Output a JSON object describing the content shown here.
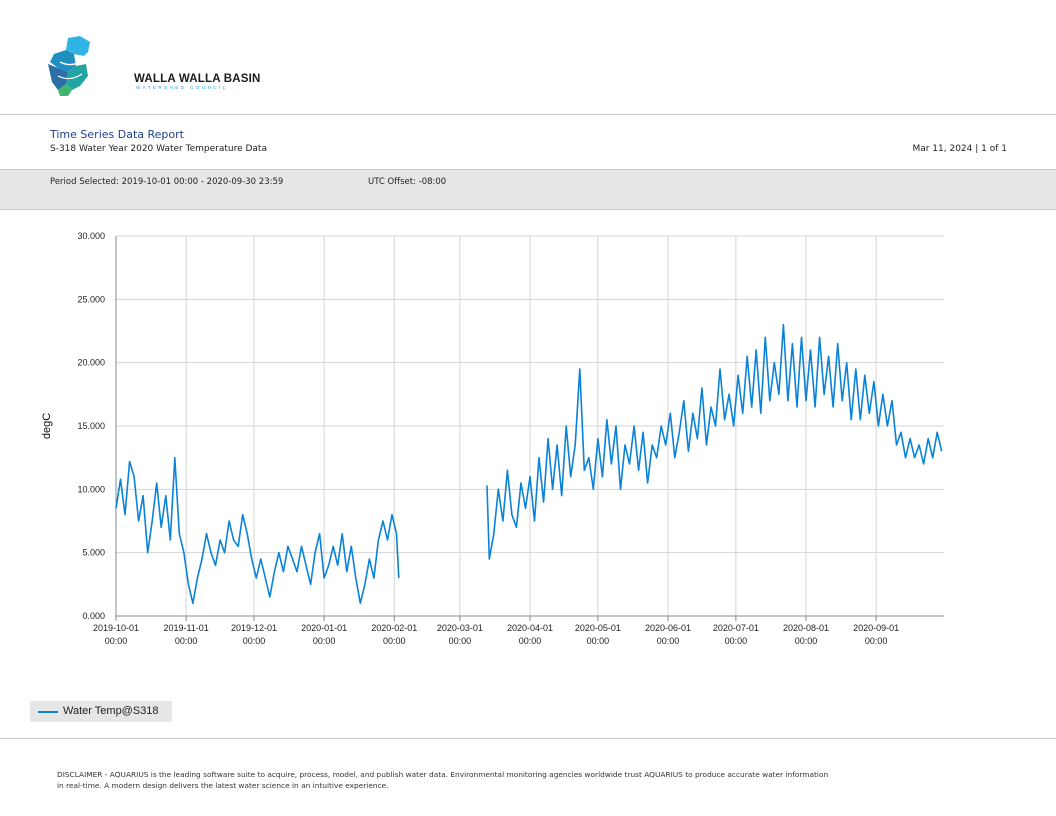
{
  "header": {
    "logo": {
      "name": "WALLA WALLA BASIN",
      "subtitle": "WATERSHED COUNCIL"
    },
    "report_title": "Time Series Data Report",
    "report_subtitle": "S-318 Water Year 2020 Water Temperature Data",
    "date_page": "Mar 11, 2024 | 1 of 1"
  },
  "period": {
    "selected": "Period Selected: 2019-10-01 00:00 - 2020-09-30 23:59",
    "utc": "UTC Offset: -08:00"
  },
  "chart_data": {
    "type": "line",
    "ylabel": "degC",
    "xlabel": "",
    "ylim": [
      0,
      30
    ],
    "xlim": [
      "2019-10-01",
      "2020-09-30"
    ],
    "y_ticks": [
      "0.000",
      "5.000",
      "10.000",
      "15.000",
      "20.000",
      "25.000",
      "30.000"
    ],
    "x_ticks": [
      {
        "date": "2019-10-01",
        "label": "2019-10-01",
        "time": "00:00"
      },
      {
        "date": "2019-11-01",
        "label": "2019-11-01",
        "time": "00:00"
      },
      {
        "date": "2019-12-01",
        "label": "2019-12-01",
        "time": "00:00"
      },
      {
        "date": "2020-01-01",
        "label": "2020-01-01",
        "time": "00:00"
      },
      {
        "date": "2020-02-01",
        "label": "2020-02-01",
        "time": "00:00"
      },
      {
        "date": "2020-03-01",
        "label": "2020-03-01",
        "time": "00:00"
      },
      {
        "date": "2020-04-01",
        "label": "2020-04-01",
        "time": "00:00"
      },
      {
        "date": "2020-05-01",
        "label": "2020-05-01",
        "time": "00:00"
      },
      {
        "date": "2020-06-01",
        "label": "2020-06-01",
        "time": "00:00"
      },
      {
        "date": "2020-07-01",
        "label": "2020-07-01",
        "time": "00:00"
      },
      {
        "date": "2020-08-01",
        "label": "2020-08-01",
        "time": "00:00"
      },
      {
        "date": "2020-09-01",
        "label": "2020-09-01",
        "time": "00:00"
      }
    ],
    "grid": true,
    "legend_position": "bottom-left",
    "series": [
      {
        "name": "Water Temp@S318",
        "color": "#0a82d8",
        "segments": [
          [
            [
              "2019-10-01",
              8.5
            ],
            [
              "2019-10-03",
              10.8
            ],
            [
              "2019-10-05",
              8.0
            ],
            [
              "2019-10-07",
              12.2
            ],
            [
              "2019-10-09",
              11.0
            ],
            [
              "2019-10-11",
              7.5
            ],
            [
              "2019-10-13",
              9.5
            ],
            [
              "2019-10-15",
              5.0
            ],
            [
              "2019-10-17",
              7.5
            ],
            [
              "2019-10-19",
              10.5
            ],
            [
              "2019-10-21",
              7.0
            ],
            [
              "2019-10-23",
              9.5
            ],
            [
              "2019-10-25",
              6.0
            ],
            [
              "2019-10-27",
              12.5
            ],
            [
              "2019-10-29",
              6.5
            ],
            [
              "2019-10-31",
              5.0
            ],
            [
              "2019-11-02",
              2.5
            ],
            [
              "2019-11-04",
              1.0
            ],
            [
              "2019-11-06",
              3.0
            ],
            [
              "2019-11-08",
              4.5
            ],
            [
              "2019-11-10",
              6.5
            ],
            [
              "2019-11-12",
              5.0
            ],
            [
              "2019-11-14",
              4.0
            ],
            [
              "2019-11-16",
              6.0
            ],
            [
              "2019-11-18",
              5.0
            ],
            [
              "2019-11-20",
              7.5
            ],
            [
              "2019-11-22",
              6.0
            ],
            [
              "2019-11-24",
              5.5
            ],
            [
              "2019-11-26",
              8.0
            ],
            [
              "2019-11-28",
              6.5
            ],
            [
              "2019-11-30",
              4.5
            ],
            [
              "2019-12-02",
              3.0
            ],
            [
              "2019-12-04",
              4.5
            ],
            [
              "2019-12-06",
              3.0
            ],
            [
              "2019-12-08",
              1.5
            ],
            [
              "2019-12-10",
              3.5
            ],
            [
              "2019-12-12",
              5.0
            ],
            [
              "2019-12-14",
              3.5
            ],
            [
              "2019-12-16",
              5.5
            ],
            [
              "2019-12-18",
              4.5
            ],
            [
              "2019-12-20",
              3.5
            ],
            [
              "2019-12-22",
              5.5
            ],
            [
              "2019-12-24",
              4.0
            ],
            [
              "2019-12-26",
              2.5
            ],
            [
              "2019-12-28",
              5.0
            ],
            [
              "2019-12-30",
              6.5
            ],
            [
              "2020-01-01",
              3.0
            ],
            [
              "2020-01-03",
              4.0
            ],
            [
              "2020-01-05",
              5.5
            ],
            [
              "2020-01-07",
              4.0
            ],
            [
              "2020-01-09",
              6.5
            ],
            [
              "2020-01-11",
              3.5
            ],
            [
              "2020-01-13",
              5.5
            ],
            [
              "2020-01-15",
              3.0
            ],
            [
              "2020-01-17",
              1.0
            ],
            [
              "2020-01-19",
              2.5
            ],
            [
              "2020-01-21",
              4.5
            ],
            [
              "2020-01-23",
              3.0
            ],
            [
              "2020-01-25",
              6.0
            ],
            [
              "2020-01-27",
              7.5
            ],
            [
              "2020-01-29",
              6.0
            ],
            [
              "2020-01-31",
              8.0
            ],
            [
              "2020-02-02",
              6.5
            ],
            [
              "2020-02-03",
              3.0
            ]
          ],
          [
            [
              "2020-03-13",
              10.3
            ],
            [
              "2020-03-14",
              4.5
            ],
            [
              "2020-03-16",
              6.5
            ],
            [
              "2020-03-18",
              10.0
            ],
            [
              "2020-03-20",
              7.5
            ],
            [
              "2020-03-22",
              11.5
            ],
            [
              "2020-03-24",
              8.0
            ],
            [
              "2020-03-26",
              7.0
            ],
            [
              "2020-03-28",
              10.5
            ],
            [
              "2020-03-30",
              8.5
            ],
            [
              "2020-04-01",
              11.0
            ],
            [
              "2020-04-03",
              7.5
            ],
            [
              "2020-04-05",
              12.5
            ],
            [
              "2020-04-07",
              9.0
            ],
            [
              "2020-04-09",
              14.0
            ],
            [
              "2020-04-11",
              10.0
            ],
            [
              "2020-04-13",
              13.5
            ],
            [
              "2020-04-15",
              9.5
            ],
            [
              "2020-04-17",
              15.0
            ],
            [
              "2020-04-19",
              11.0
            ],
            [
              "2020-04-21",
              13.5
            ],
            [
              "2020-04-23",
              19.5
            ],
            [
              "2020-04-25",
              11.5
            ],
            [
              "2020-04-27",
              12.5
            ],
            [
              "2020-04-29",
              10.0
            ],
            [
              "2020-05-01",
              14.0
            ],
            [
              "2020-05-03",
              11.0
            ],
            [
              "2020-05-05",
              15.5
            ],
            [
              "2020-05-07",
              12.0
            ],
            [
              "2020-05-09",
              15.0
            ],
            [
              "2020-05-11",
              10.0
            ],
            [
              "2020-05-13",
              13.5
            ],
            [
              "2020-05-15",
              12.0
            ],
            [
              "2020-05-17",
              15.0
            ],
            [
              "2020-05-19",
              11.5
            ],
            [
              "2020-05-21",
              14.5
            ],
            [
              "2020-05-23",
              10.5
            ],
            [
              "2020-05-25",
              13.5
            ],
            [
              "2020-05-27",
              12.5
            ],
            [
              "2020-05-29",
              15.0
            ],
            [
              "2020-05-31",
              13.5
            ],
            [
              "2020-06-02",
              16.0
            ],
            [
              "2020-06-04",
              12.5
            ],
            [
              "2020-06-06",
              14.5
            ],
            [
              "2020-06-08",
              17.0
            ],
            [
              "2020-06-10",
              13.0
            ],
            [
              "2020-06-12",
              16.0
            ],
            [
              "2020-06-14",
              14.0
            ],
            [
              "2020-06-16",
              18.0
            ],
            [
              "2020-06-18",
              13.5
            ],
            [
              "2020-06-20",
              16.5
            ],
            [
              "2020-06-22",
              15.0
            ],
            [
              "2020-06-24",
              19.5
            ],
            [
              "2020-06-26",
              15.5
            ],
            [
              "2020-06-28",
              17.5
            ],
            [
              "2020-06-30",
              15.0
            ],
            [
              "2020-07-02",
              19.0
            ],
            [
              "2020-07-04",
              16.0
            ],
            [
              "2020-07-06",
              20.5
            ],
            [
              "2020-07-08",
              16.5
            ],
            [
              "2020-07-10",
              21.0
            ],
            [
              "2020-07-12",
              16.0
            ],
            [
              "2020-07-14",
              22.0
            ],
            [
              "2020-07-16",
              17.0
            ],
            [
              "2020-07-18",
              20.0
            ],
            [
              "2020-07-20",
              17.5
            ],
            [
              "2020-07-22",
              23.0
            ],
            [
              "2020-07-24",
              17.0
            ],
            [
              "2020-07-26",
              21.5
            ],
            [
              "2020-07-28",
              16.5
            ],
            [
              "2020-07-30",
              22.0
            ],
            [
              "2020-08-01",
              17.0
            ],
            [
              "2020-08-03",
              21.0
            ],
            [
              "2020-08-05",
              16.5
            ],
            [
              "2020-08-07",
              22.0
            ],
            [
              "2020-08-09",
              17.5
            ],
            [
              "2020-08-11",
              20.5
            ],
            [
              "2020-08-13",
              16.5
            ],
            [
              "2020-08-15",
              21.5
            ],
            [
              "2020-08-17",
              17.0
            ],
            [
              "2020-08-19",
              20.0
            ],
            [
              "2020-08-21",
              15.5
            ],
            [
              "2020-08-23",
              19.5
            ],
            [
              "2020-08-25",
              15.5
            ],
            [
              "2020-08-27",
              19.0
            ],
            [
              "2020-08-29",
              16.0
            ],
            [
              "2020-08-31",
              18.5
            ],
            [
              "2020-09-02",
              15.0
            ],
            [
              "2020-09-04",
              17.5
            ],
            [
              "2020-09-06",
              15.0
            ],
            [
              "2020-09-08",
              17.0
            ],
            [
              "2020-09-10",
              13.5
            ],
            [
              "2020-09-12",
              14.5
            ],
            [
              "2020-09-14",
              12.5
            ],
            [
              "2020-09-16",
              14.0
            ],
            [
              "2020-09-18",
              12.5
            ],
            [
              "2020-09-20",
              13.5
            ],
            [
              "2020-09-22",
              12.0
            ],
            [
              "2020-09-24",
              14.0
            ],
            [
              "2020-09-26",
              12.5
            ],
            [
              "2020-09-28",
              14.5
            ],
            [
              "2020-09-30",
              13.0
            ]
          ]
        ]
      }
    ]
  },
  "legend": {
    "label": "Water Temp@S318",
    "color": "#0a82d8"
  },
  "disclaimer": "DISCLAIMER - AQUARIUS is the leading software suite to acquire, process, model, and publish water data. Environmental monitoring agencies worldwide trust AQUARIUS to produce accurate water information in real-time. A modern design delivers the latest water science in an intuitive experience."
}
